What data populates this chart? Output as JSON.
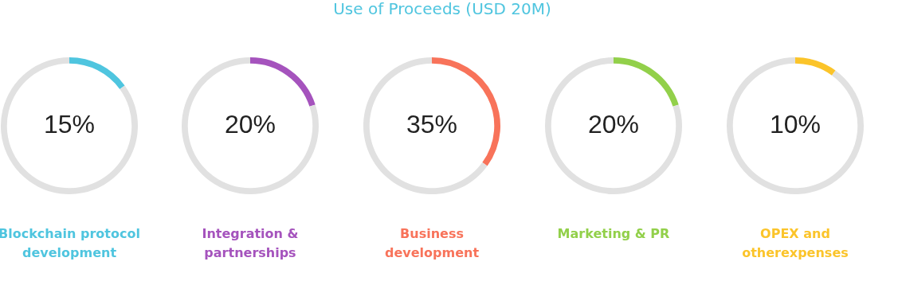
{
  "chart_data": [
    {
      "type": "other",
      "title": "Use of Proceeds (USD 20M)"
    },
    {
      "type": "donut",
      "title": "Blockchain protocol development",
      "categories": [
        null,
        null
      ],
      "values": [
        15,
        85
      ],
      "colors": [
        "#4fc5df",
        "#e1e1e1"
      ],
      "value_labels": [
        "15%",
        null
      ]
    },
    {
      "type": "donut",
      "title": "Integration & partnerships",
      "categories": [
        null,
        null
      ],
      "values": [
        20,
        80
      ],
      "colors": [
        "#a553bd",
        "#e1e1e1"
      ],
      "value_labels": [
        "20%",
        null
      ]
    },
    {
      "type": "donut",
      "title": "Business development",
      "categories": [
        null,
        null
      ],
      "values": [
        35,
        65
      ],
      "colors": [
        "#f8735a",
        "#e1e1e1"
      ],
      "value_labels": [
        "35%",
        null
      ]
    },
    {
      "type": "donut",
      "title": "Marketing & PR",
      "categories": [
        null,
        null
      ],
      "values": [
        20,
        80
      ],
      "colors": [
        "#92d04a",
        "#e1e1e1"
      ],
      "value_labels": [
        "20%",
        null
      ]
    },
    {
      "type": "donut",
      "title": "OPEX and otherexpenses",
      "categories": [
        null,
        null
      ],
      "values": [
        10,
        90
      ],
      "colors": [
        "#fbc42a",
        "#e1e1e1"
      ],
      "value_labels": [
        "10%",
        null
      ]
    }
  ]
}
